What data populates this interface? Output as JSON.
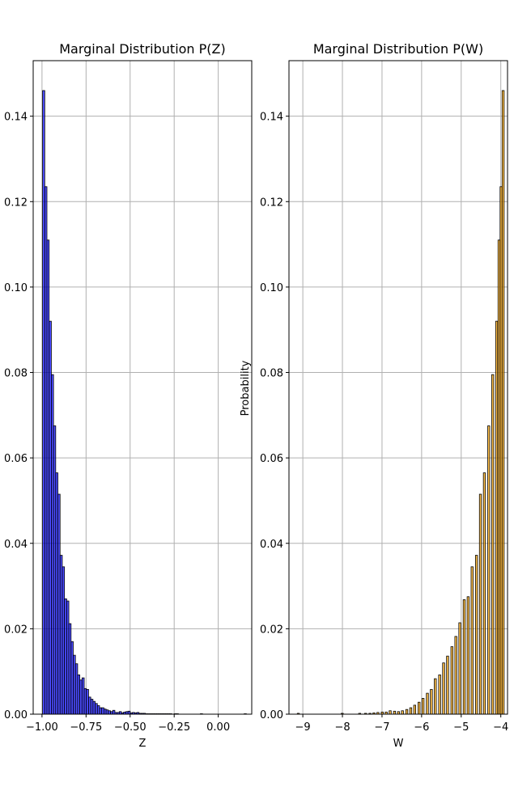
{
  "chart_data": [
    {
      "type": "bar",
      "title": "Marginal Distribution P(Z)",
      "xlabel": "Z",
      "ylabel": "",
      "xlim": [
        -1.05,
        0.19
      ],
      "ylim": [
        0,
        0.153
      ],
      "grid": true,
      "color": "#0000ff",
      "edge_color": "#000000",
      "bin_width": 0.01243,
      "x_ticks": [
        -1.0,
        -0.75,
        -0.5,
        -0.25,
        0.0
      ],
      "x_tick_labels": [
        "−1.00",
        "−0.75",
        "−0.50",
        "−0.25",
        "0.00"
      ],
      "y_ticks": [
        0,
        0.02,
        0.04,
        0.06,
        0.08,
        0.1,
        0.12,
        0.14
      ],
      "y_tick_labels": [
        "0.00",
        "0.02",
        "0.04",
        "0.06",
        "0.08",
        "0.10",
        "0.12",
        "0.14"
      ],
      "bins_start": [
        -0.9968,
        -0.9844,
        -0.972,
        -0.9595,
        -0.9471,
        -0.9347,
        -0.9222,
        -0.9098,
        -0.8974,
        -0.8849,
        -0.8725,
        -0.8601,
        -0.8476,
        -0.8352,
        -0.8228,
        -0.8103,
        -0.7979,
        -0.7855,
        -0.773,
        -0.7606,
        -0.7482,
        -0.7357,
        -0.7233,
        -0.7109,
        -0.6984,
        -0.686,
        -0.6736,
        -0.6611,
        -0.6487,
        -0.6363,
        -0.6238,
        -0.6114,
        -0.599,
        -0.5865,
        -0.5741,
        -0.5617,
        -0.5492,
        -0.5368,
        -0.5244,
        -0.5119,
        -0.4995,
        -0.4871,
        -0.4746,
        -0.4622,
        -0.4498,
        -0.4373,
        -0.4249,
        -0.4125,
        -0.4,
        -0.3876,
        -0.3752,
        -0.3627,
        -0.3503,
        -0.3379,
        -0.3254,
        -0.313,
        -0.3006,
        -0.2881,
        -0.2757,
        -0.2633,
        -0.2508,
        -0.2384,
        -0.226,
        -0.2135,
        -0.2011,
        -0.1887,
        -0.1762,
        -0.1638,
        -0.1514,
        -0.1389,
        -0.1265,
        -0.1141,
        -0.1016,
        -0.0892,
        -0.0768,
        -0.0643,
        -0.0519,
        -0.0395,
        -0.027,
        -0.0146,
        -0.0022,
        0.0103,
        0.0227,
        0.0351,
        0.0476,
        0.06,
        0.0724,
        0.0849,
        0.0973,
        0.1097,
        0.1222,
        0.1346,
        0.147
      ],
      "values": [
        0.146,
        0.1235,
        0.111,
        0.092,
        0.0795,
        0.0675,
        0.0565,
        0.0515,
        0.0372,
        0.0345,
        0.027,
        0.0265,
        0.0212,
        0.017,
        0.0138,
        0.0118,
        0.0092,
        0.008,
        0.0085,
        0.006,
        0.0058,
        0.004,
        0.0035,
        0.003,
        0.0025,
        0.002,
        0.0015,
        0.0015,
        0.0012,
        0.001,
        0.0008,
        0.0006,
        0.0009,
        0.0004,
        0.0004,
        0.0006,
        0.0003,
        0.0005,
        0.0006,
        0.0007,
        0.0003,
        0.0004,
        0.0003,
        0.0004,
        0.0002,
        0.0002,
        0.0002,
        0.0001,
        0.0001,
        0.0001,
        0.0001,
        0.0001,
        0.0001,
        0.0001,
        0.0001,
        0.0001,
        0.0001,
        0.0001,
        0.0001,
        0.0,
        0.0001,
        0.0001,
        0.0,
        0.0,
        0.0,
        0.0,
        0.0,
        0.0,
        0.0,
        0.0,
        0.0,
        0.0,
        0.0001,
        0.0,
        0.0,
        0.0,
        0.0,
        0.0,
        0.0,
        0.0,
        0.0,
        0.0,
        0.0,
        0.0,
        0.0,
        0.0,
        0.0,
        0.0,
        0.0,
        0.0,
        0.0,
        0.0,
        0.0001
      ]
    },
    {
      "type": "bar",
      "title": "Marginal Distribution P(W)",
      "xlabel": "W",
      "ylabel": "Probability",
      "xlim": [
        -9.35,
        -3.83
      ],
      "ylim": [
        0,
        0.153
      ],
      "grid": true,
      "color": "#ffa500",
      "edge_color": "#000000",
      "bin_width": 0.0516,
      "x_ticks": [
        -9,
        -8,
        -7,
        -6,
        -5,
        -4
      ],
      "x_tick_labels": [
        "−9",
        "−8",
        "−7",
        "−6",
        "−5",
        "−4"
      ],
      "y_ticks": [
        0,
        0.02,
        0.04,
        0.06,
        0.08,
        0.1,
        0.12,
        0.14
      ],
      "y_tick_labels": [
        "0.00",
        "0.02",
        "0.04",
        "0.06",
        "0.08",
        "0.10",
        "0.12",
        "0.14"
      ],
      "bins_start": [
        -9.14,
        -8.03,
        -7.59,
        -7.44,
        -7.33,
        -7.23,
        -7.13,
        -7.02,
        -6.92,
        -6.82,
        -6.71,
        -6.61,
        -6.51,
        -6.4,
        -6.3,
        -6.2,
        -6.09,
        -5.99,
        -5.88,
        -5.78,
        -5.68,
        -5.57,
        -5.47,
        -5.37,
        -5.26,
        -5.16,
        -5.06,
        -4.95,
        -4.85,
        -4.75,
        -4.64,
        -4.54,
        -4.44,
        -4.33,
        -4.23,
        -4.13,
        -4.07
      ],
      "values": [
        0.0002,
        0.0002,
        0.0002,
        0.0002,
        0.0002,
        0.0003,
        0.0004,
        0.0005,
        0.0005,
        0.0008,
        0.0007,
        0.0006,
        0.0008,
        0.0011,
        0.0015,
        0.0021,
        0.0028,
        0.0037,
        0.0049,
        0.0058,
        0.0083,
        0.0092,
        0.012,
        0.0136,
        0.0158,
        0.0182,
        0.0214,
        0.0268,
        0.0275,
        0.0345,
        0.0372,
        0.0515,
        0.0565,
        0.0675,
        0.0795,
        0.092,
        0.111
      ],
      "tail_values": [
        0.1235,
        0.146
      ]
    }
  ]
}
